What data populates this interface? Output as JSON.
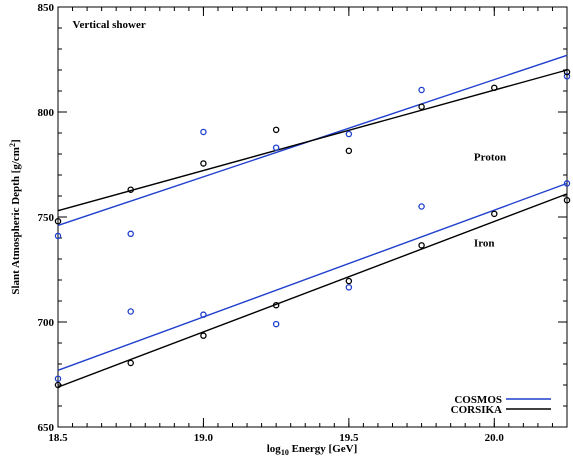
{
  "chart_data": {
    "type": "scatter",
    "title": "",
    "xlabel": {
      "prefix": "log",
      "sub": "10",
      "suffix": " Energy [GeV]"
    },
    "ylabel": {
      "prefix": "Slant Atmospheric Depth [g/cm",
      "sup": "2",
      "suffix": "]"
    },
    "xlim": [
      18.5,
      20.25
    ],
    "ylim": [
      650,
      850
    ],
    "xticks": [
      18.5,
      19.0,
      19.5,
      20.0
    ],
    "xtick_labels": [
      "18.5",
      "19.0",
      "19.5",
      "20.0"
    ],
    "yticks": [
      650,
      700,
      750,
      800,
      850
    ],
    "ytick_labels": [
      "650",
      "700",
      "750",
      "800",
      "850"
    ],
    "x_minor_step": 0.05,
    "y_minor_step": 10,
    "grid": false,
    "legend_position": "bottom-right",
    "annotations": [
      {
        "text": "Vertical shower",
        "x": 18.55,
        "y": 840
      },
      {
        "text": "Proton",
        "x": 19.93,
        "y": 777
      },
      {
        "text": "Iron",
        "x": 19.93,
        "y": 736
      }
    ],
    "series": [
      {
        "name": "COSMOS",
        "color": "#1f3fcc",
        "group": "Proton",
        "points": [
          [
            18.5,
            741
          ],
          [
            18.75,
            742
          ],
          [
            19.0,
            790.5
          ],
          [
            19.25,
            783
          ],
          [
            19.5,
            789.5
          ],
          [
            19.75,
            810.5
          ],
          [
            20.25,
            817
          ]
        ],
        "fit": [
          [
            18.5,
            746
          ],
          [
            20.25,
            827
          ]
        ]
      },
      {
        "name": "CORSIKA",
        "color": "#000000",
        "group": "Proton",
        "points": [
          [
            18.5,
            748
          ],
          [
            18.75,
            763
          ],
          [
            19.0,
            775.5
          ],
          [
            19.25,
            791.5
          ],
          [
            19.5,
            781.5
          ],
          [
            19.75,
            802.5
          ],
          [
            20.0,
            811.5
          ],
          [
            20.25,
            819
          ]
        ],
        "fit": [
          [
            18.5,
            753
          ],
          [
            20.25,
            820
          ]
        ]
      },
      {
        "name": "COSMOS",
        "color": "#1f3fcc",
        "group": "Iron",
        "points": [
          [
            18.5,
            673
          ],
          [
            18.75,
            705
          ],
          [
            19.0,
            703.5
          ],
          [
            19.25,
            699
          ],
          [
            19.5,
            716.5
          ],
          [
            19.75,
            755
          ],
          [
            20.25,
            766
          ]
        ],
        "fit": [
          [
            18.5,
            677
          ],
          [
            20.25,
            766
          ]
        ]
      },
      {
        "name": "CORSIKA",
        "color": "#000000",
        "group": "Iron",
        "points": [
          [
            18.5,
            670
          ],
          [
            18.75,
            680.5
          ],
          [
            19.0,
            693.5
          ],
          [
            19.25,
            708
          ],
          [
            19.5,
            719.5
          ],
          [
            19.75,
            736.5
          ],
          [
            20.0,
            751.5
          ],
          [
            20.25,
            758
          ]
        ],
        "fit": [
          [
            18.5,
            669
          ],
          [
            20.25,
            761
          ]
        ]
      }
    ],
    "legend": [
      {
        "label": "COSMOS",
        "color": "#1f3fcc"
      },
      {
        "label": "CORSIKA",
        "color": "#000000"
      }
    ]
  }
}
